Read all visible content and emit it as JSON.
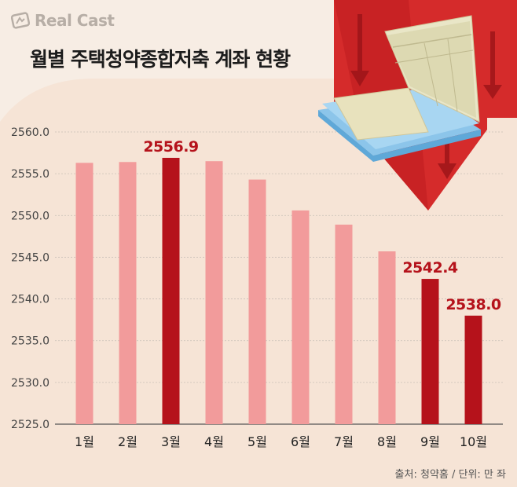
{
  "logo": {
    "text": "Real Cast"
  },
  "title": "월별 주택청약종합저축 계좌 현황",
  "source": "출처: 청약홈 / 단위: 만 좌",
  "colors": {
    "bar_light": "#f29b9b",
    "bar_dark": "#b5121b",
    "label": "#b5121b",
    "arrow": "#d52b2b"
  },
  "icons": [
    "logo-cast-icon",
    "bankbook-illustration",
    "down-arrow-icon"
  ],
  "chart_data": {
    "type": "bar",
    "categories": [
      "1월",
      "2월",
      "3월",
      "4월",
      "5월",
      "6월",
      "7월",
      "8월",
      "9월",
      "10월"
    ],
    "values": [
      2556.3,
      2556.4,
      2556.9,
      2556.5,
      2554.3,
      2550.6,
      2548.9,
      2545.7,
      2542.4,
      2538.0
    ],
    "highlighted": [
      false,
      false,
      true,
      false,
      false,
      false,
      false,
      false,
      true,
      true
    ],
    "data_labels": [
      "",
      "",
      "2556.9",
      "",
      "",
      "",
      "",
      "",
      "2542.4",
      "2538.0"
    ],
    "yticks": [
      "2525.0",
      "2530.0",
      "2535.0",
      "2540.0",
      "2545.0",
      "2550.0",
      "2555.0",
      "2560.0"
    ],
    "ylim": [
      2525,
      2560
    ],
    "grid": true,
    "title": "",
    "xlabel": "",
    "ylabel": ""
  }
}
